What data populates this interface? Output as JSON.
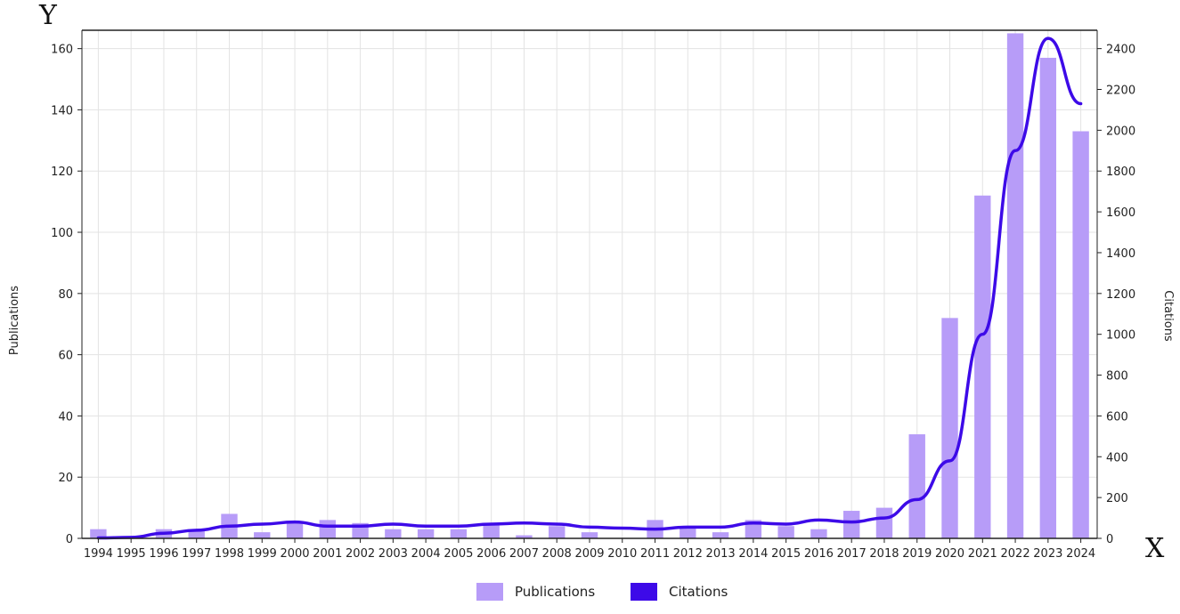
{
  "chart_data": {
    "type": "bar",
    "categories": [
      "1994",
      "1995",
      "1996",
      "1997",
      "1998",
      "1999",
      "2000",
      "2001",
      "2002",
      "2003",
      "2004",
      "2005",
      "2006",
      "2007",
      "2008",
      "2009",
      "2010",
      "2011",
      "2012",
      "2013",
      "2014",
      "2015",
      "2016",
      "2017",
      "2018",
      "2019",
      "2020",
      "2021",
      "2022",
      "2023",
      "2024"
    ],
    "series": [
      {
        "name": "Publications",
        "kind": "bar",
        "axis": "left",
        "values": [
          3,
          0,
          3,
          3,
          8,
          2,
          5,
          6,
          5,
          3,
          3,
          3,
          5,
          1,
          4,
          2,
          0,
          6,
          4,
          2,
          6,
          4,
          3,
          9,
          10,
          34,
          72,
          112,
          165,
          157,
          133
        ]
      },
      {
        "name": "Citations",
        "kind": "line",
        "axis": "right",
        "values": [
          2,
          5,
          25,
          40,
          60,
          70,
          80,
          60,
          60,
          70,
          60,
          60,
          70,
          75,
          70,
          55,
          50,
          45,
          55,
          55,
          75,
          70,
          90,
          80,
          100,
          190,
          380,
          1000,
          1900,
          2450,
          2130
        ]
      }
    ],
    "ylabel": "Publications",
    "y2label": "Citations",
    "ylim": [
      0,
      166
    ],
    "y2lim": [
      0,
      2490
    ],
    "yticks": [
      0,
      20,
      40,
      60,
      80,
      100,
      120,
      140,
      160
    ],
    "y2ticks": [
      0,
      200,
      400,
      600,
      800,
      1000,
      1200,
      1400,
      1600,
      1800,
      2000,
      2200,
      2400
    ],
    "corner_y": "Y",
    "corner_x": "X",
    "grid": true,
    "legend_position": "bottom-center",
    "colors": {
      "bar": "#b79cf8",
      "line": "#3d0ae8",
      "grid": "#e3e3e3",
      "axis": "#222222"
    }
  }
}
